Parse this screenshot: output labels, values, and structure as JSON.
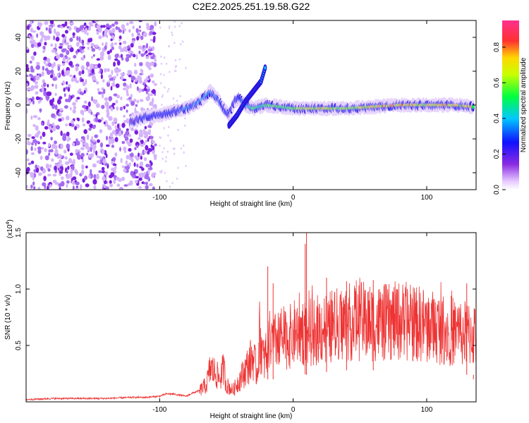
{
  "title": "C2E2.2025.251.19.58.G22",
  "colors": {
    "snr_line": "#ee3333",
    "frame": "#000000",
    "background": "#ffffff"
  },
  "chart_data": [
    {
      "type": "heatmap",
      "title": "C2E2.2025.251.19.58.G22",
      "xlabel": "Height of straight line (km)",
      "ylabel": "Frequency (Hz)",
      "xlim": [
        -200,
        137
      ],
      "ylim": [
        -50,
        50
      ],
      "xticks": [
        -100,
        0,
        100
      ],
      "yticks": [
        -40,
        -20,
        0,
        20,
        40
      ],
      "colorbar": {
        "label": "Normalized spectral amplitude",
        "range": [
          0,
          0.95
        ],
        "ticks": [
          0.0,
          0.2,
          0.4,
          0.6,
          0.8
        ]
      },
      "ridge": {
        "x": [
          -122,
          -110,
          -100,
          -90,
          -80,
          -70,
          -62,
          -57,
          -52,
          -48,
          -44,
          -40,
          -36,
          -30,
          -25,
          -20,
          -10,
          0,
          20,
          40,
          60,
          80,
          100,
          120,
          135
        ],
        "y": [
          -10,
          -7,
          -6,
          -4,
          -2,
          2,
          8,
          4,
          -2,
          -6,
          2,
          4,
          0,
          -2,
          -1,
          0,
          -1,
          -2,
          -2,
          -2,
          -1,
          0,
          0,
          0,
          -1
        ],
        "amplitude": [
          0.3,
          0.35,
          0.4,
          0.4,
          0.45,
          0.5,
          0.55,
          0.45,
          0.4,
          0.35,
          0.4,
          0.45,
          0.5,
          0.6,
          0.65,
          0.65,
          0.7,
          0.75,
          0.8,
          0.8,
          0.85,
          0.9,
          0.85,
          0.9,
          0.85
        ]
      },
      "branch": {
        "x": [
          -48,
          -42,
          -36,
          -30,
          -24,
          -21
        ],
        "y": [
          -12,
          -6,
          2,
          8,
          14,
          22
        ]
      },
      "noise_region_x": [
        -200,
        -103
      ]
    },
    {
      "type": "line",
      "xlabel": "Height of straight line (km)",
      "ylabel": "SNR (10 * v/v)",
      "y_multiplier": "(x10",
      "y_multiplier_exp": "4",
      "y_multiplier_close": ")",
      "xlim": [
        -200,
        137
      ],
      "ylim": [
        0,
        1.5
      ],
      "xticks": [
        -100,
        0,
        100
      ],
      "yticks": [
        0.5,
        1.0,
        1.5
      ],
      "series": [
        {
          "name": "SNR",
          "x": [
            -200,
            -180,
            -160,
            -140,
            -120,
            -110,
            -100,
            -95,
            -90,
            -85,
            -80,
            -75,
            -70,
            -65,
            -62,
            -58,
            -55,
            -52,
            -50,
            -45,
            -40,
            -35,
            -30,
            -27,
            -25,
            -22,
            -20,
            -18,
            -15,
            -10,
            -5,
            0,
            5,
            10,
            15,
            20,
            30,
            40,
            50,
            60,
            70,
            80,
            90,
            100,
            110,
            120,
            130,
            137
          ],
          "y": [
            0.02,
            0.03,
            0.03,
            0.03,
            0.04,
            0.04,
            0.05,
            0.07,
            0.07,
            0.06,
            0.05,
            0.08,
            0.1,
            0.15,
            0.3,
            0.25,
            0.2,
            0.3,
            0.15,
            0.1,
            0.2,
            0.3,
            0.4,
            0.25,
            0.6,
            0.35,
            0.45,
            0.55,
            0.5,
            0.6,
            0.55,
            0.6,
            0.65,
            0.6,
            0.62,
            0.65,
            0.67,
            0.7,
            0.72,
            0.7,
            0.7,
            0.72,
            0.7,
            0.68,
            0.65,
            0.63,
            0.6,
            0.6
          ],
          "peaks": {
            "x": [
              -19,
              -15,
              9,
              10,
              25,
              40,
              60,
              130,
              135
            ],
            "y": [
              1.2,
              1.05,
              1.4,
              1.5,
              1.1,
              1.07,
              1.08,
              1.05,
              0.2
            ]
          }
        }
      ]
    }
  ]
}
